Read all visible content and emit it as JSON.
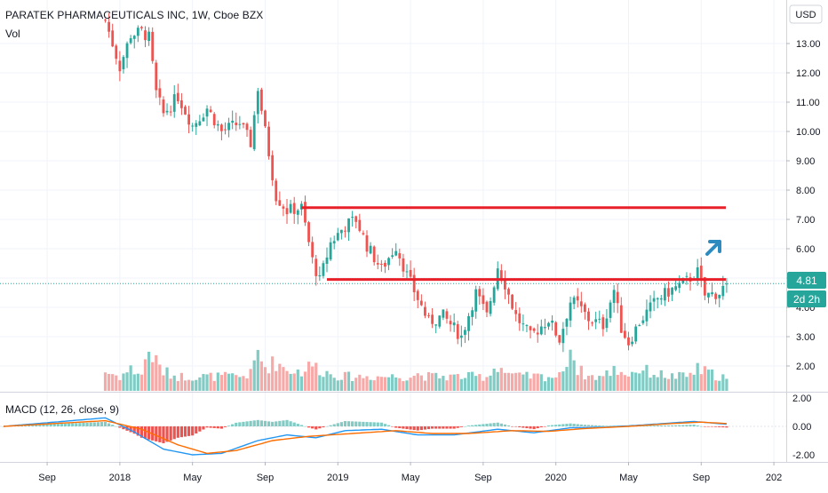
{
  "header": {
    "title": "PARATEK PHARMACEUTICALS INC, 1W, Cboe BZX",
    "volume_label": "Vol",
    "macd_label": "MACD (12, 26, close, 9)"
  },
  "price_axis": {
    "currency_label": "USD",
    "ticks": [
      "13.00",
      "12.00",
      "11.00",
      "10.00",
      "9.00",
      "8.00",
      "7.00",
      "6.00",
      "5.00",
      "4.00",
      "3.00",
      "2.00"
    ],
    "last_price_badge": "4.81",
    "countdown_badge": "2d 2h"
  },
  "macd_axis": {
    "ticks": [
      "2.00",
      "0.00",
      "-2.00"
    ]
  },
  "time_axis": {
    "labels": [
      "Sep",
      "2018",
      "May",
      "Sep",
      "2019",
      "May",
      "Sep",
      "2020",
      "May",
      "Sep",
      "202"
    ]
  },
  "colors": {
    "up": "#26a69a",
    "down": "#ef5350",
    "up_light": "#80cbc4",
    "down_light": "#f7a9a7",
    "annotation_line": "#e8202a",
    "arrow": "#2e8bc0",
    "macd_line": "#2196f3",
    "signal_line": "#ff6d00",
    "badge": "#26a69a"
  },
  "annotations": {
    "resistance_line_y": 7.4,
    "support_line_y": 4.95,
    "arrow_icon": "up-right-arrow"
  },
  "chart_data": {
    "type": "candlestick",
    "title": "PARATEK PHARMACEUTICALS INC, 1W, Cboe BZX",
    "ylabel": "USD",
    "ylim": [
      1.0,
      14.2
    ],
    "macd_ylim": [
      -2.5,
      2.5
    ],
    "last_price": 4.81,
    "anchors": [
      {
        "w": 28,
        "p": 13.8,
        "v": 0.4
      },
      {
        "w": 32,
        "p": 12.2,
        "v": 0.3
      },
      {
        "w": 35,
        "p": 13.3,
        "v": 0.45
      },
      {
        "w": 38,
        "p": 13.4,
        "v": 0.35
      },
      {
        "w": 40,
        "p": 13.2,
        "v": 0.85
      },
      {
        "w": 42,
        "p": 11.3,
        "v": 0.6
      },
      {
        "w": 44,
        "p": 10.6,
        "v": 0.4
      },
      {
        "w": 48,
        "p": 11.2,
        "v": 0.3
      },
      {
        "w": 52,
        "p": 10.2,
        "v": 0.3
      },
      {
        "w": 56,
        "p": 10.8,
        "v": 0.3
      },
      {
        "w": 60,
        "p": 10.0,
        "v": 0.3
      },
      {
        "w": 65,
        "p": 10.3,
        "v": 0.3
      },
      {
        "w": 68,
        "p": 9.6,
        "v": 0.35
      },
      {
        "w": 70,
        "p": 11.5,
        "v": 0.8
      },
      {
        "w": 72,
        "p": 10.0,
        "v": 0.5
      },
      {
        "w": 75,
        "p": 7.8,
        "v": 0.6
      },
      {
        "w": 78,
        "p": 7.3,
        "v": 0.45
      },
      {
        "w": 82,
        "p": 7.4,
        "v": 0.4
      },
      {
        "w": 85,
        "p": 5.6,
        "v": 0.55
      },
      {
        "w": 87,
        "p": 4.9,
        "v": 0.45
      },
      {
        "w": 90,
        "p": 6.2,
        "v": 0.35
      },
      {
        "w": 94,
        "p": 6.8,
        "v": 0.3
      },
      {
        "w": 97,
        "p": 7.0,
        "v": 0.3
      },
      {
        "w": 100,
        "p": 6.1,
        "v": 0.3
      },
      {
        "w": 104,
        "p": 5.3,
        "v": 0.3
      },
      {
        "w": 108,
        "p": 6.1,
        "v": 0.3
      },
      {
        "w": 111,
        "p": 5.1,
        "v": 0.3
      },
      {
        "w": 114,
        "p": 4.3,
        "v": 0.35
      },
      {
        "w": 117,
        "p": 3.5,
        "v": 0.3
      },
      {
        "w": 121,
        "p": 3.7,
        "v": 0.3
      },
      {
        "w": 126,
        "p": 3.0,
        "v": 0.3
      },
      {
        "w": 130,
        "p": 4.5,
        "v": 0.3
      },
      {
        "w": 133,
        "p": 3.7,
        "v": 0.3
      },
      {
        "w": 136,
        "p": 5.4,
        "v": 0.55
      },
      {
        "w": 138,
        "p": 4.8,
        "v": 0.4
      },
      {
        "w": 141,
        "p": 3.7,
        "v": 0.3
      },
      {
        "w": 145,
        "p": 3.0,
        "v": 0.3
      },
      {
        "w": 150,
        "p": 3.6,
        "v": 0.3
      },
      {
        "w": 153,
        "p": 2.9,
        "v": 0.3
      },
      {
        "w": 156,
        "p": 4.2,
        "v": 0.9
      },
      {
        "w": 158,
        "p": 4.1,
        "v": 0.45
      },
      {
        "w": 161,
        "p": 3.6,
        "v": 0.3
      },
      {
        "w": 165,
        "p": 3.4,
        "v": 0.3
      },
      {
        "w": 168,
        "p": 4.6,
        "v": 0.45
      },
      {
        "w": 170,
        "p": 3.3,
        "v": 0.4
      },
      {
        "w": 172,
        "p": 2.8,
        "v": 0.35
      },
      {
        "w": 175,
        "p": 3.5,
        "v": 0.45
      },
      {
        "w": 180,
        "p": 4.3,
        "v": 0.35
      },
      {
        "w": 184,
        "p": 4.6,
        "v": 0.3
      },
      {
        "w": 188,
        "p": 4.9,
        "v": 0.3
      },
      {
        "w": 191,
        "p": 5.2,
        "v": 0.45
      },
      {
        "w": 193,
        "p": 4.4,
        "v": 0.4
      },
      {
        "w": 197,
        "p": 4.5,
        "v": 0.3
      },
      {
        "w": 199,
        "p": 4.81,
        "v": 0.3
      }
    ],
    "macd_series": [
      {
        "name": "MACD",
        "anchors": [
          {
            "w": 0,
            "m": 0.0
          },
          {
            "w": 28,
            "m": 0.6
          },
          {
            "w": 36,
            "m": -0.4
          },
          {
            "w": 44,
            "m": -1.6
          },
          {
            "w": 52,
            "m": -2.0
          },
          {
            "w": 60,
            "m": -1.9
          },
          {
            "w": 70,
            "m": -1.0
          },
          {
            "w": 78,
            "m": -0.6
          },
          {
            "w": 86,
            "m": -0.8
          },
          {
            "w": 94,
            "m": -0.3
          },
          {
            "w": 104,
            "m": -0.2
          },
          {
            "w": 114,
            "m": -0.6
          },
          {
            "w": 124,
            "m": -0.6
          },
          {
            "w": 136,
            "m": -0.2
          },
          {
            "w": 146,
            "m": -0.45
          },
          {
            "w": 156,
            "m": -0.1
          },
          {
            "w": 166,
            "m": -0.05
          },
          {
            "w": 176,
            "m": 0.1
          },
          {
            "w": 190,
            "m": 0.35
          },
          {
            "w": 199,
            "m": 0.15
          }
        ]
      },
      {
        "name": "Signal",
        "anchors": [
          {
            "w": 0,
            "m": 0.0
          },
          {
            "w": 28,
            "m": 0.4
          },
          {
            "w": 38,
            "m": -0.2
          },
          {
            "w": 48,
            "m": -1.3
          },
          {
            "w": 56,
            "m": -1.9
          },
          {
            "w": 64,
            "m": -1.7
          },
          {
            "w": 74,
            "m": -1.0
          },
          {
            "w": 84,
            "m": -0.7
          },
          {
            "w": 96,
            "m": -0.5
          },
          {
            "w": 108,
            "m": -0.3
          },
          {
            "w": 118,
            "m": -0.5
          },
          {
            "w": 128,
            "m": -0.5
          },
          {
            "w": 140,
            "m": -0.3
          },
          {
            "w": 150,
            "m": -0.35
          },
          {
            "w": 160,
            "m": -0.15
          },
          {
            "w": 172,
            "m": 0.0
          },
          {
            "w": 184,
            "m": 0.2
          },
          {
            "w": 192,
            "m": 0.3
          },
          {
            "w": 199,
            "m": 0.2
          }
        ]
      }
    ]
  }
}
